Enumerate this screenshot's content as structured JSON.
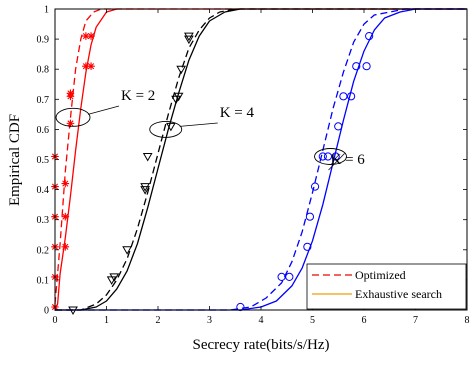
{
  "chart_data": {
    "type": "line",
    "xlabel": "Secrecy rate(bits/s/Hz)",
    "ylabel": "Empirical CDF",
    "xlim": [
      0,
      8
    ],
    "ylim": [
      0,
      1
    ],
    "x_ticks": [
      "0",
      "1",
      "2",
      "3",
      "4",
      "5",
      "6",
      "7",
      "8"
    ],
    "y_ticks": [
      "0",
      "0.1",
      "0.2",
      "0.3",
      "0.4",
      "0.5",
      "0.6",
      "0.7",
      "0.8",
      "0.9",
      "1"
    ],
    "grid": false,
    "legend_position": "bottom-right",
    "legend": [
      {
        "label": "Optimized",
        "style": "dashed",
        "color": "#e8332a"
      },
      {
        "label": "Exhaustive search",
        "style": "solid",
        "color": "#f0b030"
      }
    ],
    "annotations": [
      {
        "text": "K = 2",
        "target_x": 0.35,
        "target_y": 0.64
      },
      {
        "text": "K = 4",
        "target_x": 2.15,
        "target_y": 0.6
      },
      {
        "text": "K = 6",
        "target_x": 5.35,
        "target_y": 0.51
      }
    ],
    "series": [
      {
        "group": "K = 2",
        "line": "solid",
        "color": "#ff0000",
        "x": [
          0.0,
          0.05,
          0.1,
          0.2,
          0.3,
          0.4,
          0.5,
          0.6,
          0.7,
          0.8,
          1.0,
          1.2,
          8.0
        ],
        "y": [
          0.0,
          0.02,
          0.12,
          0.24,
          0.38,
          0.53,
          0.67,
          0.79,
          0.88,
          0.94,
          0.99,
          1.0,
          1.0
        ]
      },
      {
        "group": "K = 2",
        "line": "dashed",
        "color": "#ff0000",
        "x": [
          0.0,
          0.05,
          0.1,
          0.15,
          0.2,
          0.3,
          0.4,
          0.5,
          0.6,
          0.75,
          0.9,
          8.0
        ],
        "y": [
          0.02,
          0.12,
          0.22,
          0.34,
          0.46,
          0.64,
          0.8,
          0.9,
          0.96,
          0.99,
          1.0,
          1.0
        ]
      },
      {
        "group": "K = 2",
        "line": "markers",
        "marker": "star",
        "color": "#ff0000",
        "x": [
          0.0,
          0.0,
          0.0,
          0.0,
          0.0,
          0.0,
          0.2,
          0.2,
          0.2,
          0.3,
          0.3,
          0.3,
          0.6,
          0.6,
          0.7,
          0.7
        ],
        "y": [
          0.01,
          0.11,
          0.21,
          0.31,
          0.41,
          0.51,
          0.21,
          0.31,
          0.42,
          0.62,
          0.71,
          0.72,
          0.81,
          0.91,
          0.81,
          0.91
        ]
      },
      {
        "group": "K = 4",
        "line": "solid",
        "color": "#000000",
        "x": [
          0.0,
          0.5,
          0.8,
          1.0,
          1.2,
          1.4,
          1.6,
          1.8,
          2.0,
          2.2,
          2.4,
          2.6,
          2.8,
          3.0,
          3.3,
          3.6,
          4.0,
          8.0
        ],
        "y": [
          0.0,
          0.0,
          0.01,
          0.03,
          0.07,
          0.13,
          0.22,
          0.34,
          0.47,
          0.6,
          0.72,
          0.83,
          0.91,
          0.96,
          0.99,
          1.0,
          1.0,
          1.0
        ]
      },
      {
        "group": "K = 4",
        "line": "dashed",
        "color": "#000000",
        "x": [
          0.0,
          0.5,
          0.8,
          1.0,
          1.2,
          1.4,
          1.6,
          1.8,
          2.0,
          2.2,
          2.4,
          2.6,
          2.8,
          3.0,
          3.2,
          3.5,
          3.8,
          8.0
        ],
        "y": [
          0.0,
          0.0,
          0.02,
          0.05,
          0.1,
          0.17,
          0.27,
          0.39,
          0.52,
          0.65,
          0.77,
          0.87,
          0.93,
          0.97,
          0.99,
          1.0,
          1.0,
          1.0
        ]
      },
      {
        "group": "K = 4",
        "line": "markers",
        "marker": "triangle-down",
        "color": "#000000",
        "x": [
          0.35,
          1.1,
          1.15,
          1.4,
          1.75,
          1.75,
          1.8,
          2.25,
          2.35,
          2.4,
          2.45,
          2.6,
          2.6
        ],
        "y": [
          0.0,
          0.1,
          0.11,
          0.2,
          0.4,
          0.41,
          0.51,
          0.61,
          0.7,
          0.71,
          0.8,
          0.9,
          0.91
        ]
      },
      {
        "group": "K = 6",
        "line": "solid",
        "color": "#0000ff",
        "x": [
          0.0,
          3.6,
          4.0,
          4.3,
          4.6,
          4.8,
          5.0,
          5.2,
          5.4,
          5.6,
          5.8,
          6.0,
          6.2,
          6.4,
          6.7,
          7.0,
          7.3,
          8.0
        ],
        "y": [
          0.0,
          0.0,
          0.01,
          0.03,
          0.08,
          0.14,
          0.23,
          0.35,
          0.49,
          0.63,
          0.76,
          0.86,
          0.93,
          0.97,
          0.99,
          1.0,
          1.0,
          1.0
        ]
      },
      {
        "group": "K = 6",
        "line": "dashed",
        "color": "#0000ff",
        "x": [
          0.0,
          3.4,
          3.8,
          4.1,
          4.4,
          4.6,
          4.8,
          5.0,
          5.2,
          5.4,
          5.6,
          5.8,
          6.0,
          6.2,
          6.5,
          6.8,
          7.1,
          8.0
        ],
        "y": [
          0.0,
          0.0,
          0.01,
          0.04,
          0.09,
          0.16,
          0.26,
          0.39,
          0.53,
          0.67,
          0.79,
          0.89,
          0.95,
          0.98,
          0.99,
          1.0,
          1.0,
          1.0
        ]
      },
      {
        "group": "K = 6",
        "line": "markers",
        "marker": "circle",
        "color": "#0000ff",
        "x": [
          3.6,
          4.4,
          4.55,
          4.9,
          4.95,
          5.05,
          5.2,
          5.3,
          5.45,
          5.5,
          5.6,
          5.75,
          5.85,
          6.05,
          6.1
        ],
        "y": [
          0.01,
          0.11,
          0.11,
          0.21,
          0.31,
          0.41,
          0.51,
          0.51,
          0.51,
          0.61,
          0.71,
          0.71,
          0.81,
          0.81,
          0.91
        ]
      }
    ]
  }
}
